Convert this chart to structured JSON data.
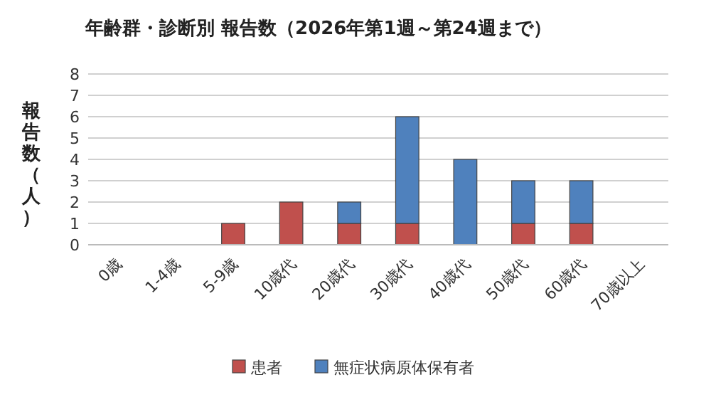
{
  "chart_data": {
    "type": "bar",
    "stacked": true,
    "title": "年齢群・診断別 報告数（2026年第1週～第24週まで）",
    "ylabel": "報告数（人）",
    "categories": [
      "0歳",
      "1-4歳",
      "5-9歳",
      "10歳代",
      "20歳代",
      "30歳代",
      "40歳代",
      "50歳代",
      "60歳代",
      "70歳以上"
    ],
    "series": [
      {
        "name": "患者",
        "color": "#c0504d",
        "values": [
          0,
          0,
          1,
          2,
          1,
          1,
          0,
          1,
          1,
          0
        ]
      },
      {
        "name": "無症状病原体保有者",
        "color": "#4f81bd",
        "values": [
          0,
          0,
          0,
          0,
          1,
          5,
          4,
          2,
          2,
          0
        ]
      }
    ],
    "ylim": [
      0,
      8
    ],
    "yticks": [
      0,
      1,
      2,
      3,
      4,
      5,
      6,
      7,
      8
    ],
    "grid": "y",
    "legend": "bottom"
  }
}
